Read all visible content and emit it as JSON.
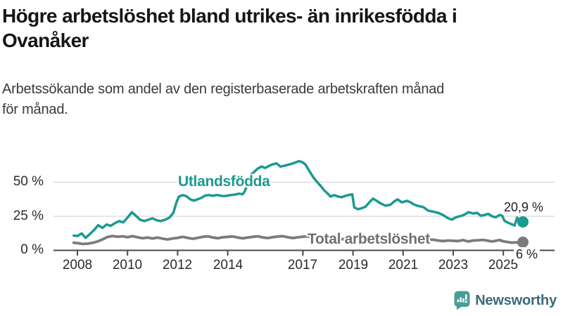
{
  "header": {
    "title_line1": "Högre arbetslöshet bland utrikes- än inrikesfödda i",
    "title_line2": "Ovanåker",
    "subtitle_line1": "Arbetssökande som andel av den registerbaserade arbetskraften månad",
    "subtitle_line2": "för månad."
  },
  "footer": {
    "brand": "Newsworthy"
  },
  "colors": {
    "accent_teal": "#1b9a90",
    "line_gray": "#7b7b7b",
    "axis": "#4a4a4a",
    "grid": "#d8d8d8",
    "logo_icon_teal": "#4a9d96",
    "logo_text_blue": "#3d697c"
  },
  "chart_data": {
    "type": "line",
    "title": "Högre arbetslöshet bland utrikes- än inrikesfödda i Ovanåker",
    "xlabel": "",
    "ylabel": "",
    "x_unit": "year (monthly data points)",
    "xlim": [
      2007.8,
      2026.3
    ],
    "ylim": [
      0,
      70
    ],
    "grid": true,
    "yticks": [
      {
        "value": 0,
        "label": "0 %"
      },
      {
        "value": 25,
        "label": "25 %"
      },
      {
        "value": 50,
        "label": "50 %"
      }
    ],
    "xticks": [
      {
        "year": 2008,
        "label": "2008"
      },
      {
        "year": 2010,
        "label": "2010"
      },
      {
        "year": 2012,
        "label": "2012"
      },
      {
        "year": 2014,
        "label": "2014"
      },
      {
        "year": 2017,
        "label": "2017"
      },
      {
        "year": 2019,
        "label": "2019"
      },
      {
        "year": 2021,
        "label": "2021"
      },
      {
        "year": 2023,
        "label": "2023"
      },
      {
        "year": 2025,
        "label": "2025"
      }
    ],
    "series": [
      {
        "name": "Utlandsfödda",
        "color": "#1b9a90",
        "end_label": "20,9 %",
        "end_value": 20.9,
        "points": [
          [
            2007.85,
            10.8
          ],
          [
            2008.0,
            10.5
          ],
          [
            2008.17,
            12.4
          ],
          [
            2008.33,
            9.2
          ],
          [
            2008.5,
            12.0
          ],
          [
            2008.67,
            15.0
          ],
          [
            2008.83,
            18.5
          ],
          [
            2009.0,
            16.5
          ],
          [
            2009.17,
            19.0
          ],
          [
            2009.33,
            18.0
          ],
          [
            2009.5,
            20.0
          ],
          [
            2009.67,
            21.5
          ],
          [
            2009.83,
            20.5
          ],
          [
            2010.0,
            24.0
          ],
          [
            2010.17,
            28.0
          ],
          [
            2010.33,
            25.5
          ],
          [
            2010.5,
            22.5
          ],
          [
            2010.67,
            21.5
          ],
          [
            2010.83,
            22.5
          ],
          [
            2011.0,
            23.5
          ],
          [
            2011.17,
            22.0
          ],
          [
            2011.33,
            21.5
          ],
          [
            2011.5,
            22.5
          ],
          [
            2011.67,
            24.0
          ],
          [
            2011.83,
            27.5
          ],
          [
            2011.95,
            35.0
          ],
          [
            2012.05,
            39.5
          ],
          [
            2012.2,
            40.5
          ],
          [
            2012.35,
            39.8
          ],
          [
            2012.5,
            37.5
          ],
          [
            2012.65,
            36.5
          ],
          [
            2012.8,
            37.5
          ],
          [
            2012.95,
            38.5
          ],
          [
            2013.1,
            40.2
          ],
          [
            2013.25,
            40.6
          ],
          [
            2013.4,
            40.0
          ],
          [
            2013.55,
            40.6
          ],
          [
            2013.7,
            40.2
          ],
          [
            2013.85,
            39.8
          ],
          [
            2014.0,
            40.2
          ],
          [
            2014.15,
            40.6
          ],
          [
            2014.3,
            41.0
          ],
          [
            2014.45,
            41.6
          ],
          [
            2014.6,
            41.2
          ],
          [
            2014.7,
            44.0
          ],
          [
            2014.8,
            50.0
          ],
          [
            2014.9,
            55.0
          ],
          [
            2015.05,
            57.5
          ],
          [
            2015.2,
            60.0
          ],
          [
            2015.35,
            61.5
          ],
          [
            2015.5,
            60.5
          ],
          [
            2015.65,
            62.0
          ],
          [
            2015.8,
            63.2
          ],
          [
            2015.95,
            63.8
          ],
          [
            2016.1,
            61.5
          ],
          [
            2016.25,
            62.0
          ],
          [
            2016.4,
            62.8
          ],
          [
            2016.55,
            63.5
          ],
          [
            2016.7,
            64.5
          ],
          [
            2016.85,
            65.5
          ],
          [
            2017.0,
            64.5
          ],
          [
            2017.1,
            63.0
          ],
          [
            2017.25,
            58.5
          ],
          [
            2017.4,
            54.0
          ],
          [
            2017.55,
            50.5
          ],
          [
            2017.7,
            47.5
          ],
          [
            2017.85,
            44.0
          ],
          [
            2018.0,
            41.5
          ],
          [
            2018.1,
            39.5
          ],
          [
            2018.25,
            40.5
          ],
          [
            2018.4,
            39.5
          ],
          [
            2018.55,
            39.0
          ],
          [
            2018.7,
            40.0
          ],
          [
            2018.85,
            40.7
          ],
          [
            2018.97,
            41.2
          ],
          [
            2019.05,
            31.5
          ],
          [
            2019.2,
            30.2
          ],
          [
            2019.35,
            31.0
          ],
          [
            2019.5,
            32.0
          ],
          [
            2019.65,
            35.2
          ],
          [
            2019.8,
            38.0
          ],
          [
            2019.95,
            36.3
          ],
          [
            2020.1,
            34.5
          ],
          [
            2020.3,
            32.8
          ],
          [
            2020.5,
            33.5
          ],
          [
            2020.65,
            36.0
          ],
          [
            2020.78,
            37.4
          ],
          [
            2020.95,
            35.2
          ],
          [
            2021.15,
            36.4
          ],
          [
            2021.3,
            35.2
          ],
          [
            2021.45,
            33.5
          ],
          [
            2021.6,
            32.6
          ],
          [
            2021.8,
            31.8
          ],
          [
            2022.0,
            29.2
          ],
          [
            2022.2,
            28.4
          ],
          [
            2022.4,
            27.5
          ],
          [
            2022.6,
            25.8
          ],
          [
            2022.8,
            23.5
          ],
          [
            2022.95,
            22.6
          ],
          [
            2023.1,
            24.2
          ],
          [
            2023.3,
            25.2
          ],
          [
            2023.45,
            26.2
          ],
          [
            2023.6,
            28.0
          ],
          [
            2023.8,
            27.0
          ],
          [
            2023.95,
            27.6
          ],
          [
            2024.1,
            25.4
          ],
          [
            2024.25,
            26.0
          ],
          [
            2024.4,
            26.8
          ],
          [
            2024.55,
            25.0
          ],
          [
            2024.7,
            24.3
          ],
          [
            2024.85,
            26.0
          ],
          [
            2024.95,
            25.5
          ],
          [
            2025.05,
            21.6
          ],
          [
            2025.2,
            20.2
          ],
          [
            2025.35,
            19.0
          ],
          [
            2025.45,
            18.2
          ],
          [
            2025.55,
            24.0
          ],
          [
            2025.65,
            19.2
          ],
          [
            2025.72,
            18.8
          ],
          [
            2025.78,
            20.9
          ]
        ]
      },
      {
        "name": "Total arbetslöshet",
        "color": "#7b7b7b",
        "end_label": "6 %",
        "end_value": 6.0,
        "points": [
          [
            2007.85,
            5.6
          ],
          [
            2008.05,
            5.2
          ],
          [
            2008.2,
            4.7
          ],
          [
            2008.4,
            4.9
          ],
          [
            2008.6,
            5.5
          ],
          [
            2008.8,
            6.5
          ],
          [
            2009.0,
            8.0
          ],
          [
            2009.2,
            9.8
          ],
          [
            2009.4,
            10.5
          ],
          [
            2009.6,
            10.0
          ],
          [
            2009.8,
            10.3
          ],
          [
            2010.0,
            9.7
          ],
          [
            2010.2,
            10.4
          ],
          [
            2010.4,
            9.6
          ],
          [
            2010.6,
            8.9
          ],
          [
            2010.8,
            9.4
          ],
          [
            2011.0,
            8.7
          ],
          [
            2011.2,
            9.4
          ],
          [
            2011.4,
            8.6
          ],
          [
            2011.6,
            8.0
          ],
          [
            2011.8,
            8.7
          ],
          [
            2012.0,
            9.2
          ],
          [
            2012.2,
            9.9
          ],
          [
            2012.4,
            9.2
          ],
          [
            2012.6,
            8.5
          ],
          [
            2012.8,
            9.2
          ],
          [
            2013.0,
            9.9
          ],
          [
            2013.2,
            10.3
          ],
          [
            2013.4,
            9.5
          ],
          [
            2013.6,
            8.9
          ],
          [
            2013.8,
            9.6
          ],
          [
            2014.0,
            9.9
          ],
          [
            2014.2,
            10.2
          ],
          [
            2014.4,
            9.4
          ],
          [
            2014.6,
            8.8
          ],
          [
            2014.8,
            9.4
          ],
          [
            2015.0,
            9.9
          ],
          [
            2015.2,
            10.3
          ],
          [
            2015.4,
            9.5
          ],
          [
            2015.6,
            9.0
          ],
          [
            2015.8,
            9.7
          ],
          [
            2016.0,
            10.1
          ],
          [
            2016.2,
            10.4
          ],
          [
            2016.4,
            9.6
          ],
          [
            2016.6,
            9.0
          ],
          [
            2016.8,
            9.6
          ],
          [
            2017.0,
            10.0
          ],
          [
            2017.2,
            10.3
          ],
          [
            2017.4,
            9.4
          ],
          [
            2017.6,
            8.7
          ],
          [
            2017.8,
            9.2
          ],
          [
            2018.0,
            9.6
          ],
          [
            2018.2,
            9.3
          ],
          [
            2018.4,
            8.6
          ],
          [
            2018.6,
            8.1
          ],
          [
            2018.8,
            8.7
          ],
          [
            2019.0,
            8.9
          ],
          [
            2019.2,
            8.7
          ],
          [
            2019.4,
            8.1
          ],
          [
            2019.6,
            7.8
          ],
          [
            2019.8,
            8.3
          ],
          [
            2020.0,
            8.6
          ],
          [
            2020.2,
            9.3
          ],
          [
            2020.4,
            9.8
          ],
          [
            2020.6,
            9.4
          ],
          [
            2020.8,
            9.0
          ],
          [
            2021.0,
            9.2
          ],
          [
            2021.2,
            9.0
          ],
          [
            2021.4,
            8.4
          ],
          [
            2021.6,
            7.9
          ],
          [
            2021.8,
            8.2
          ],
          [
            2022.0,
            8.0
          ],
          [
            2022.2,
            7.8
          ],
          [
            2022.4,
            7.2
          ],
          [
            2022.6,
            6.8
          ],
          [
            2022.8,
            7.2
          ],
          [
            2023.0,
            7.0
          ],
          [
            2023.2,
            6.8
          ],
          [
            2023.4,
            7.5
          ],
          [
            2023.6,
            6.5
          ],
          [
            2023.8,
            7.2
          ],
          [
            2024.0,
            7.4
          ],
          [
            2024.2,
            7.7
          ],
          [
            2024.4,
            7.0
          ],
          [
            2024.55,
            6.5
          ],
          [
            2024.7,
            7.0
          ],
          [
            2024.85,
            7.6
          ],
          [
            2025.0,
            6.6
          ],
          [
            2025.2,
            6.1
          ],
          [
            2025.35,
            5.6
          ],
          [
            2025.5,
            5.9
          ],
          [
            2025.65,
            5.4
          ],
          [
            2025.78,
            6.0
          ]
        ]
      }
    ]
  }
}
